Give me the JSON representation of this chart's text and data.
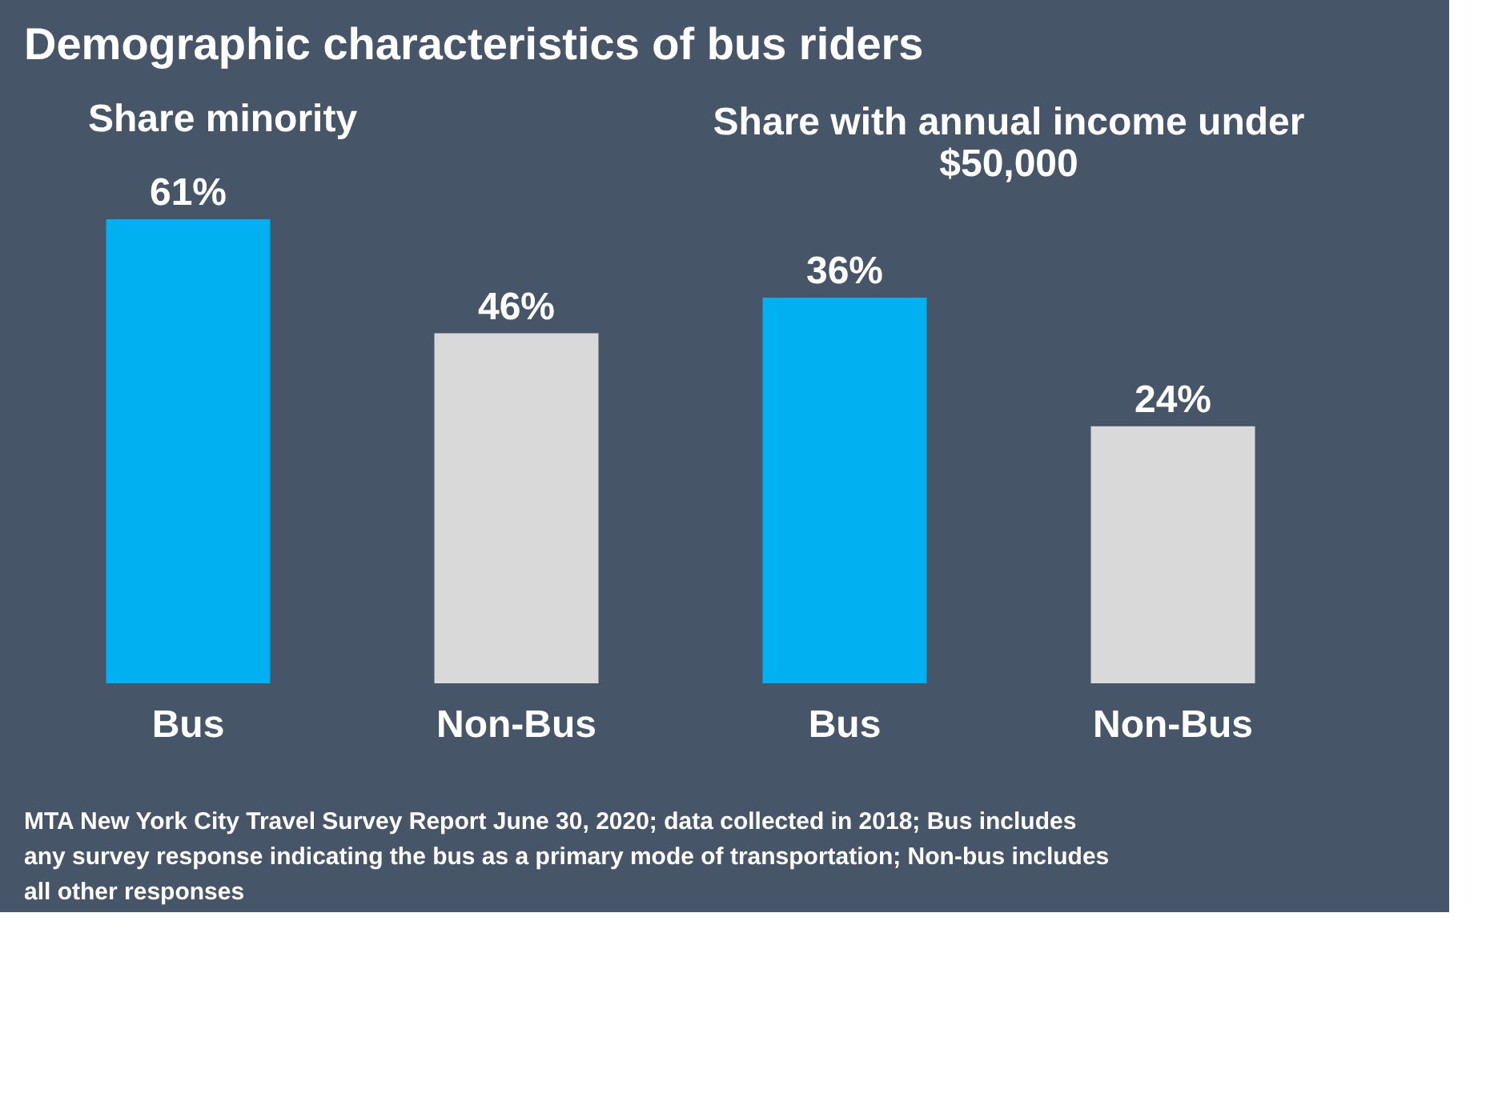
{
  "chart_data": [
    {
      "type": "bar",
      "title": "Demographic characteristics of bus riders",
      "subtitle": "Share minority",
      "categories": [
        "Bus",
        "Non-Bus"
      ],
      "values": [
        61,
        46
      ],
      "colors": [
        "#00b0f0",
        "#d9d9d9"
      ],
      "value_labels": [
        "61%",
        "46%"
      ]
    },
    {
      "type": "bar",
      "subtitle": "Share with annual income under $50,000",
      "categories": [
        "Bus",
        "Non-Bus"
      ],
      "values": [
        36,
        24
      ],
      "colors": [
        "#00b0f0",
        "#d9d9d9"
      ],
      "value_labels": [
        "36%",
        "24%"
      ],
      "annotations": [
        "MTA New York City Travel Survey Report June 30, 2020; data collected in 2018; Bus includes any survey response indicating the bus as a primary mode of transportation; Non-bus includes all other responses"
      ]
    }
  ]
}
